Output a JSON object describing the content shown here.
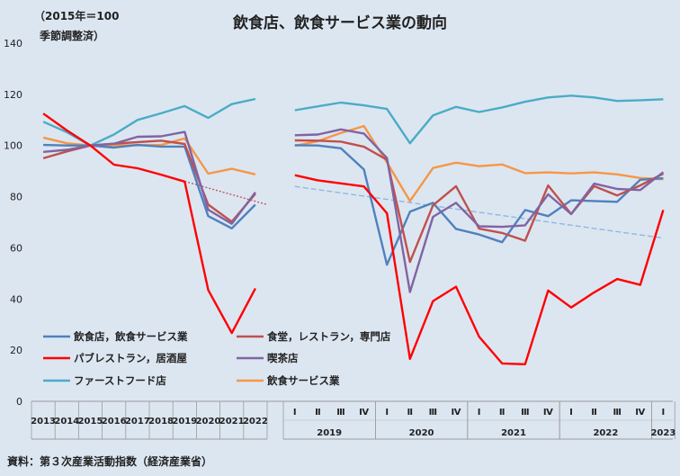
{
  "chart_data": {
    "type": "line",
    "title": "飲食店、飲食サービス業の動向",
    "note_line1": "（2015年＝100",
    "note_line2": "季節調整済）",
    "source": "資料：第３次産業活動指数（経済産業省）",
    "ylim": [
      0,
      140
    ],
    "yticks": [
      "0",
      "20",
      "40",
      "60",
      "80",
      "100",
      "120",
      "140"
    ],
    "annual": {
      "categories": [
        "2013",
        "2014",
        "2015",
        "2016",
        "2017",
        "2018",
        "2019",
        "2020",
        "2021",
        "2022"
      ]
    },
    "quarterly": {
      "quarter_labels": [
        "Ⅰ",
        "Ⅱ",
        "Ⅲ",
        "Ⅳ"
      ],
      "years": [
        "2019",
        "2020",
        "2021",
        "2022",
        "2023"
      ],
      "year_quarters": [
        4,
        4,
        4,
        4,
        1
      ],
      "count": 17
    },
    "series": [
      {
        "name": "飲食店，飲食サービス業",
        "color": "#4f81bd",
        "annual": [
          100.2,
          100.0,
          100.0,
          99.2,
          100.2,
          99.6,
          99.6,
          72.4,
          67.6,
          76.9
        ],
        "quarterly": [
          100.1,
          100.0,
          98.9,
          90.6,
          53.4,
          74.1,
          77.6,
          67.4,
          65.2,
          62.2,
          74.8,
          72.4,
          78.6,
          78.3,
          78.0,
          86.6,
          87.2
        ]
      },
      {
        "name": "食堂，レストラン，専門店",
        "color": "#c0504d",
        "annual": [
          95.0,
          97.7,
          100.0,
          100.7,
          101.3,
          101.9,
          100.6,
          76.9,
          70.2,
          81.1
        ],
        "quarterly": [
          102.0,
          101.9,
          101.5,
          99.5,
          94.4,
          54.5,
          76.6,
          84.1,
          67.5,
          65.8,
          62.8,
          84.4,
          73.2,
          84.1,
          80.5,
          84.4,
          89.0
        ]
      },
      {
        "name": "パブレストラン，居酒屋",
        "color": "#ff0000",
        "annual": [
          112.5,
          105.9,
          100.0,
          92.5,
          91.1,
          88.6,
          85.9,
          43.5,
          26.7,
          44.1
        ],
        "quarterly": [
          88.4,
          86.4,
          85.2,
          84.0,
          73.5,
          16.6,
          39.2,
          44.8,
          25.3,
          14.8,
          14.5,
          43.3,
          36.7,
          42.6,
          47.8,
          45.5,
          74.8
        ]
      },
      {
        "name": "喫茶店",
        "color": "#8064a2",
        "annual": [
          97.5,
          98.3,
          100.0,
          100.7,
          103.4,
          103.6,
          105.3,
          74.9,
          69.4,
          81.7
        ],
        "quarterly": [
          104.0,
          104.3,
          106.3,
          104.7,
          95.1,
          42.7,
          72.1,
          77.6,
          68.4,
          68.2,
          68.8,
          80.9,
          73.2,
          85.1,
          83.0,
          82.6,
          89.6
        ]
      },
      {
        "name": "ファーストフード店",
        "color": "#4bacc6",
        "annual": [
          109.3,
          105.2,
          100.0,
          104.3,
          110.0,
          112.6,
          115.4,
          110.8,
          116.2,
          118.2
        ],
        "quarterly": [
          113.8,
          115.3,
          116.8,
          115.7,
          114.3,
          100.9,
          111.8,
          115.1,
          113.1,
          114.9,
          117.1,
          118.8,
          119.5,
          118.8,
          117.4,
          117.7,
          118.1
        ]
      },
      {
        "name": "飲食サービス業",
        "color": "#f79646",
        "annual": [
          103.1,
          100.9,
          100.0,
          100.1,
          100.1,
          100.2,
          102.8,
          89.0,
          90.9,
          88.7
        ],
        "quarterly": [
          99.9,
          101.7,
          104.9,
          107.6,
          93.4,
          78.3,
          91.2,
          93.3,
          91.9,
          92.6,
          89.2,
          89.5,
          89.1,
          89.5,
          88.7,
          87.3,
          86.8
        ]
      }
    ],
    "trendlines": [
      {
        "panel": "annual",
        "color": "#c0504d",
        "from": [
          2019,
          86.0
        ],
        "to": [
          2022.5,
          76.9
        ]
      },
      {
        "panel": "quarterly",
        "color": "#8eb4e3",
        "from": [
          1,
          84.0
        ],
        "to": [
          17,
          63.8
        ]
      }
    ]
  }
}
